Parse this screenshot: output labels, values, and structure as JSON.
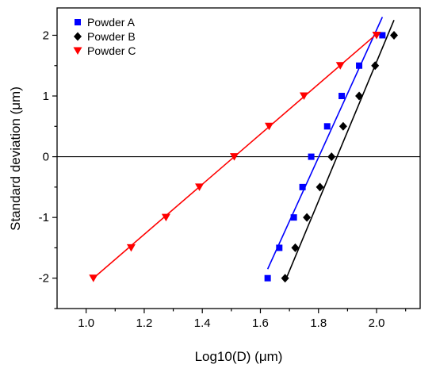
{
  "chart_data": {
    "type": "scatter",
    "title": "",
    "xlabel": "Log10(D) (μm)",
    "ylabel": "Standard deviation (μm)",
    "xlim": [
      0.9,
      2.15
    ],
    "ylim": [
      -2.5,
      2.45
    ],
    "xticks": [
      "1.0",
      "1.2",
      "1.4",
      "1.6",
      "1.8",
      "2.0"
    ],
    "xtick_values": [
      1.0,
      1.2,
      1.4,
      1.6,
      1.8,
      2.0
    ],
    "yticks": [
      "-2",
      "-1",
      "0",
      "1",
      "2"
    ],
    "ytick_values": [
      -2,
      -1,
      0,
      1,
      2
    ],
    "grid": false,
    "reference_line_y": 0,
    "legend_position": "top-left",
    "series": [
      {
        "name": "Powder A",
        "color": "#0000ff",
        "marker": "square",
        "x": [
          1.625,
          1.665,
          1.715,
          1.745,
          1.775,
          1.83,
          1.88,
          1.94,
          2.02
        ],
        "y": [
          -2,
          -1.5,
          -1,
          -0.5,
          0,
          0.5,
          1,
          1.5,
          2
        ],
        "fit": [
          [
            1.625,
            -1.85
          ],
          [
            2.02,
            2.3
          ]
        ]
      },
      {
        "name": "Powder B",
        "color": "#000000",
        "marker": "diamond",
        "x": [
          1.685,
          1.72,
          1.76,
          1.805,
          1.845,
          1.885,
          1.94,
          1.995,
          2.06
        ],
        "y": [
          -2,
          -1.5,
          -1,
          -0.5,
          0,
          0.5,
          1,
          1.5,
          2
        ],
        "fit": [
          [
            1.685,
            -2.05
          ],
          [
            2.06,
            2.25
          ]
        ]
      },
      {
        "name": "Powder C",
        "color": "#ff0000",
        "marker": "triangle-down",
        "x": [
          1.025,
          1.155,
          1.275,
          1.39,
          1.51,
          1.63,
          1.75,
          1.875,
          2.0
        ],
        "y": [
          -2,
          -1.5,
          -1,
          -0.5,
          0,
          0.5,
          1,
          1.5,
          2
        ],
        "fit": [
          [
            1.025,
            -2.0
          ],
          [
            2.0,
            2.02
          ]
        ]
      }
    ]
  }
}
